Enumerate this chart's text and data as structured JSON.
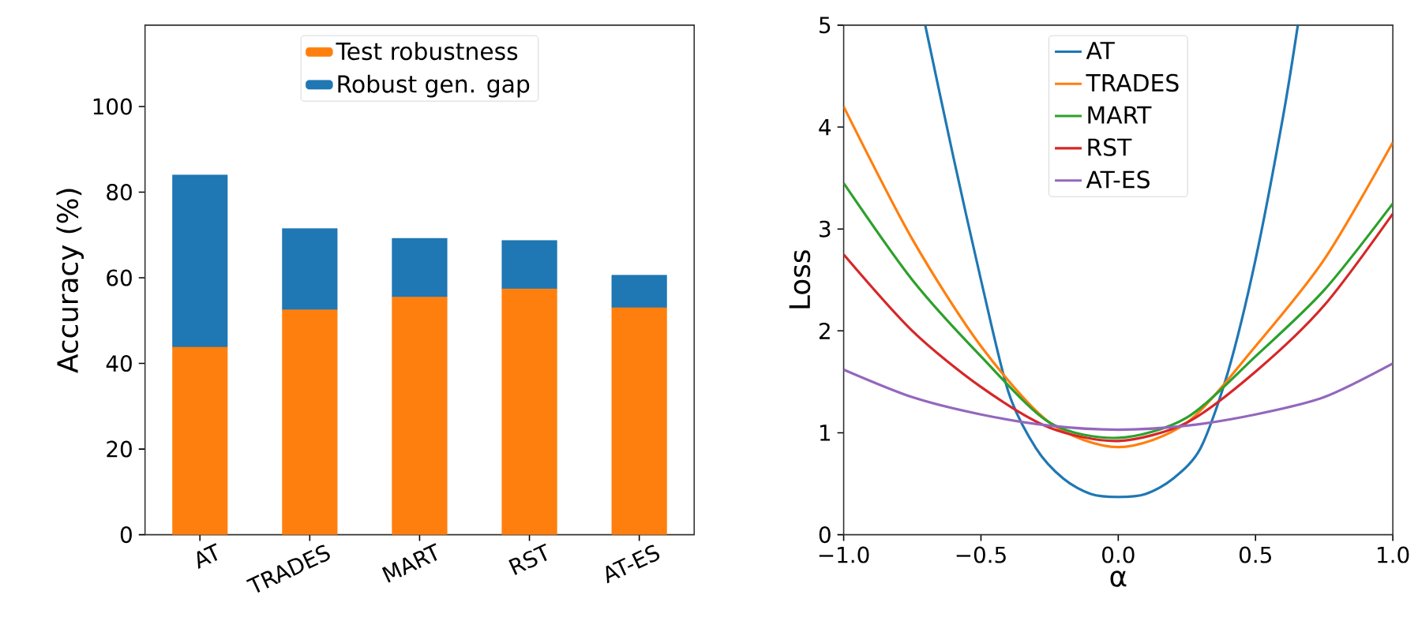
{
  "chart_data": [
    {
      "type": "bar",
      "stacked": true,
      "ylabel": "Accuracy (%)",
      "categories": [
        "AT",
        "TRADES",
        "MART",
        "RST",
        "AT-ES"
      ],
      "ylim": [
        0,
        119
      ],
      "yticks": [
        0,
        20,
        40,
        60,
        80,
        100
      ],
      "legend": "top",
      "series": [
        {
          "name": "Test robustness",
          "color": "#ff7f0e",
          "values": [
            43.8,
            52.5,
            55.5,
            57.4,
            53.0
          ]
        },
        {
          "name": "Robust gen. gap",
          "color": "#1f77b4",
          "values": [
            40.2,
            19.0,
            13.7,
            11.3,
            7.6
          ]
        }
      ]
    },
    {
      "type": "line",
      "xlabel": "α",
      "ylabel": "Loss",
      "xlim": [
        -1,
        1
      ],
      "ylim": [
        0,
        5
      ],
      "legend": "top",
      "xticks": [
        {
          "value": -1,
          "label": "−1.0"
        },
        {
          "value": -0.5,
          "label": "−0.5"
        },
        {
          "value": 0,
          "label": "0.0"
        },
        {
          "value": 0.5,
          "label": "0.5"
        },
        {
          "value": 1,
          "label": "1.0"
        }
      ],
      "yticks": [
        0,
        1,
        2,
        3,
        4,
        5
      ],
      "series": [
        {
          "name": "AT",
          "color": "#1f77b4",
          "x": [
            -0.703,
            -0.6,
            -0.5,
            -0.4,
            -0.3,
            -0.2,
            -0.1,
            0,
            0.1,
            0.2,
            0.3,
            0.4,
            0.5,
            0.6,
            0.654
          ],
          "values": [
            5.0,
            3.7,
            2.5,
            1.4,
            0.85,
            0.55,
            0.4,
            0.37,
            0.4,
            0.55,
            0.85,
            1.6,
            2.7,
            4.1,
            5.0
          ]
        },
        {
          "name": "TRADES",
          "color": "#ff7f0e",
          "x": [
            -1,
            -0.75,
            -0.5,
            -0.25,
            0,
            0.25,
            0.5,
            0.75,
            1
          ],
          "values": [
            4.2,
            2.9,
            1.85,
            1.1,
            0.86,
            1.1,
            1.85,
            2.7,
            3.85
          ]
        },
        {
          "name": "MART",
          "color": "#2ca02c",
          "x": [
            -1,
            -0.75,
            -0.5,
            -0.25,
            0,
            0.25,
            0.5,
            0.75,
            1
          ],
          "values": [
            3.45,
            2.5,
            1.75,
            1.1,
            0.95,
            1.15,
            1.75,
            2.4,
            3.25
          ]
        },
        {
          "name": "RST",
          "color": "#d62728",
          "x": [
            -1,
            -0.75,
            -0.5,
            -0.25,
            0,
            0.25,
            0.5,
            0.75,
            1
          ],
          "values": [
            2.75,
            2.0,
            1.45,
            1.05,
            0.92,
            1.1,
            1.6,
            2.25,
            3.15
          ]
        },
        {
          "name": "AT-ES",
          "color": "#9467bd",
          "x": [
            -1,
            -0.75,
            -0.5,
            -0.25,
            0,
            0.25,
            0.5,
            0.75,
            1
          ],
          "values": [
            1.62,
            1.35,
            1.18,
            1.07,
            1.03,
            1.07,
            1.18,
            1.35,
            1.68
          ]
        }
      ]
    }
  ]
}
